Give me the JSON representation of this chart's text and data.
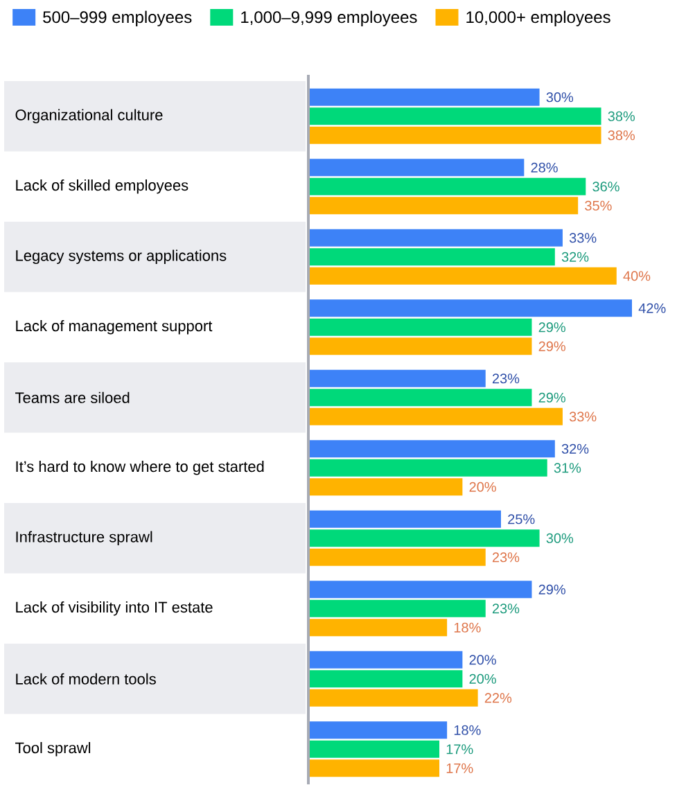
{
  "chart_data": {
    "type": "bar",
    "orientation": "horizontal",
    "legend": "top",
    "categories": [
      "Organizational culture",
      "Lack of skilled employees",
      "Legacy systems or applications",
      "Lack of management support",
      "Teams are siloed",
      "It’s hard to know where to get started",
      "Infrastructure sprawl",
      "Lack of visibility into IT estate",
      "Lack of modern tools",
      "Tool sprawl"
    ],
    "series": [
      {
        "name": "500–999 employees",
        "color": "#3d82f7",
        "values": [
          30,
          28,
          33,
          42,
          23,
          32,
          25,
          29,
          20,
          18
        ],
        "value_labels": [
          "30%",
          "28%",
          "33%",
          "42%",
          "23%",
          "32%",
          "25%",
          "29%",
          "20%",
          "18%"
        ]
      },
      {
        "name": "1,000–9,999 employees",
        "color": "#00d97a",
        "values": [
          38,
          36,
          32,
          29,
          29,
          31,
          30,
          23,
          20,
          17
        ],
        "value_labels": [
          "38%",
          "36%",
          "32%",
          "29%",
          "29%",
          "31%",
          "30%",
          "23%",
          "20%",
          "17%"
        ]
      },
      {
        "name": "10,000+ employees",
        "color": "#ffb300",
        "values": [
          38,
          35,
          40,
          29,
          33,
          20,
          23,
          18,
          22,
          17
        ],
        "value_labels": [
          "38%",
          "35%",
          "40%",
          "29%",
          "33%",
          "20%",
          "23%",
          "18%",
          "22%",
          "17%"
        ]
      }
    ]
  }
}
